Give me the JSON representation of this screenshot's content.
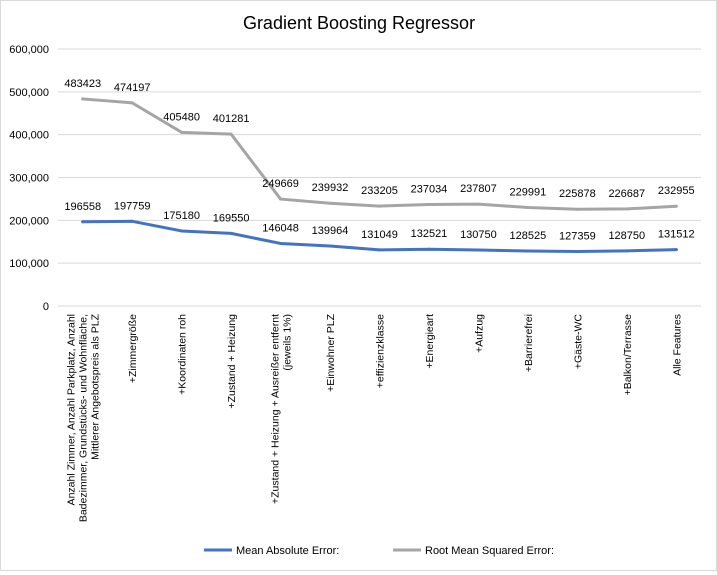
{
  "chart_data": {
    "type": "line",
    "title": "Gradient Boosting Regressor",
    "xlabel": "",
    "ylabel": "",
    "ylim": [
      0,
      600000
    ],
    "y_ticks": [
      0,
      100000,
      200000,
      300000,
      400000,
      500000,
      600000
    ],
    "y_tick_labels": [
      "0",
      "100,000",
      "200,000",
      "300,000",
      "400,000",
      "500,000",
      "600,000"
    ],
    "grid": true,
    "legend_position": "bottom",
    "categories": [
      [
        "Anzahl Zimmer, Anzahl Parkplatz, Anzahl",
        "Badezimmer, Grundstücks- und Wohnfläche,",
        "Mittlerer Angebotspreis als PLZ"
      ],
      [
        "+Zimmergröße"
      ],
      [
        "+Koordinaten roh"
      ],
      [
        "+Zustand + Heizung"
      ],
      [
        "+Zustand + Heizung + Ausreißer entfernt",
        "(jeweils 1%)"
      ],
      [
        "+Einwohner PLZ"
      ],
      [
        "+effizienzklasse"
      ],
      [
        "+Energieart"
      ],
      [
        "+Aufzug"
      ],
      [
        "+Barrierefrei"
      ],
      [
        "+Gäste-WC"
      ],
      [
        "+Balkon/Terrasse"
      ],
      [
        "Alle Features"
      ]
    ],
    "series": [
      {
        "name": "Mean Absolute Error:",
        "color": "#4472c4",
        "values": [
          196558,
          197759,
          175180,
          169550,
          146048,
          139964,
          131049,
          132521,
          130750,
          128525,
          127359,
          128750,
          131512
        ]
      },
      {
        "name": "Root Mean Squared Error:",
        "color": "#a5a5a5",
        "values": [
          483423,
          474197,
          405480,
          401281,
          249669,
          239932,
          233205,
          237034,
          237807,
          229991,
          225878,
          226687,
          232955
        ]
      }
    ]
  }
}
